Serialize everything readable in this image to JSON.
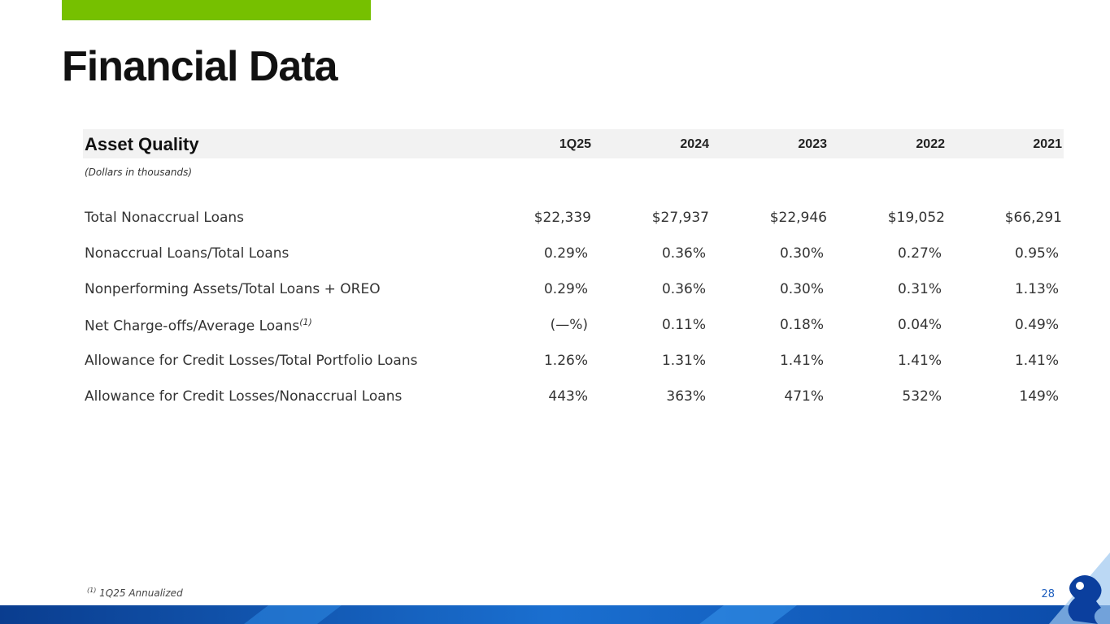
{
  "title": "Financial Data",
  "table": {
    "header": [
      "Asset Quality",
      "1Q25",
      "2024",
      "2023",
      "2022",
      "2021"
    ],
    "subtitle": "(Dollars in thousands)",
    "rows": [
      {
        "label": "Total Nonaccrual Loans",
        "values": [
          "$22,339",
          "$27,937",
          "$22,946",
          "$19,052",
          "$66,291"
        ]
      },
      {
        "label": "Nonaccrual Loans/Total Loans",
        "values": [
          "0.29%",
          "0.36%",
          "0.30%",
          "0.27%",
          "0.95%"
        ]
      },
      {
        "label": "Nonperforming Assets/Total Loans + OREO",
        "values": [
          "0.29%",
          "0.36%",
          "0.30%",
          "0.31%",
          "1.13%"
        ]
      },
      {
        "label": "Net Charge-offs/Average Loans",
        "note": "(1)",
        "values": [
          "(—%)",
          "0.11%",
          "0.18%",
          "0.04%",
          "0.49%"
        ]
      },
      {
        "label": "Allowance for Credit Losses/Total Portfolio Loans",
        "values": [
          "1.26%",
          "1.31%",
          "1.41%",
          "1.41%",
          "1.41%"
        ]
      },
      {
        "label": "Allowance for Credit Losses/Nonaccrual Loans",
        "values": [
          "443%",
          "363%",
          "471%",
          "532%",
          "149%"
        ]
      }
    ]
  },
  "footnote": {
    "mark": "(1)",
    "text": "1Q25 Annualized"
  },
  "page_number": "28"
}
